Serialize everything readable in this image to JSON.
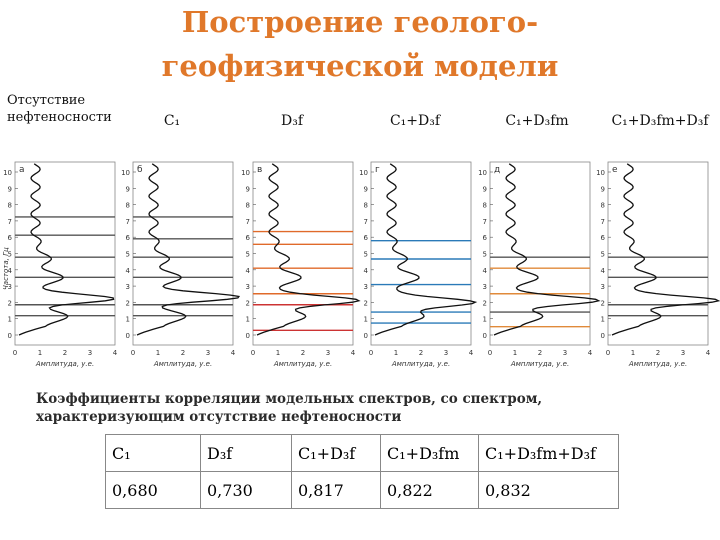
{
  "title": [
    "Построение геолого-",
    "геофизической модели"
  ],
  "subject": [
    "Отсутствие",
    "нефтеносности"
  ],
  "columns": [
    "C₁",
    "D₃f",
    "C₁+D₃f",
    "C₁+D₃fm",
    "C₁+D₃fm+D₃f"
  ],
  "panels": {
    "labels": [
      "а",
      "б",
      "в",
      "г",
      "д",
      "е"
    ],
    "yticks": [
      0,
      1,
      2,
      3,
      4,
      5,
      6,
      7,
      8,
      9,
      10
    ],
    "xticks": [
      0,
      1,
      2,
      3,
      4
    ],
    "ylabel": "Частота, Гц",
    "xlabel": "Амплитуда, у.е."
  },
  "caption": [
    "Коэффициенты корреляции модельных спектров, со спектром,",
    "характеризующим отсутствие нефтеносности"
  ],
  "table": {
    "rows": [
      [
        "C₁",
        "D₃f",
        "C₁+D₃f",
        "C₁+D₃fm",
        "C₁+D₃fm+D₃f"
      ],
      [
        "0,680",
        "0,730",
        "0,817",
        "0,822",
        "0,832"
      ]
    ]
  }
}
